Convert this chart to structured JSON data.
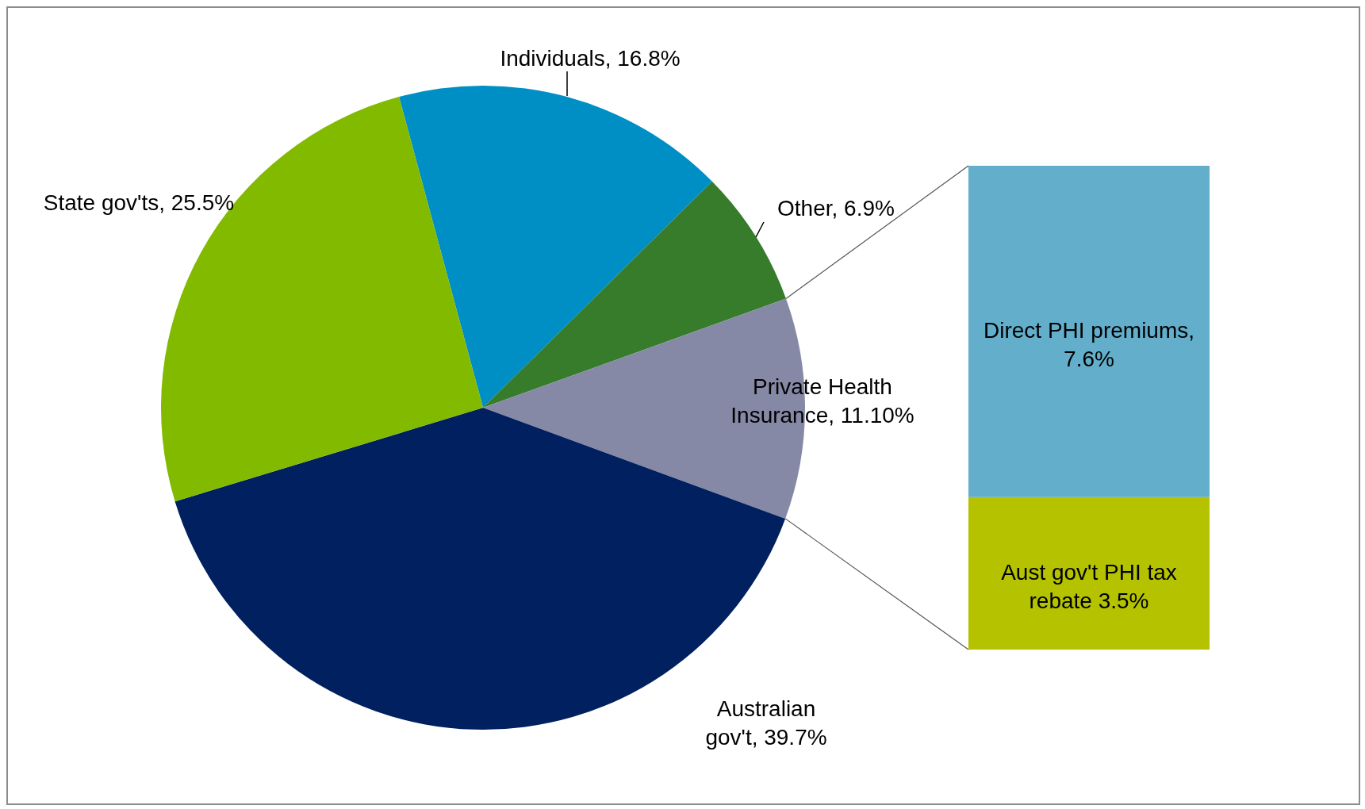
{
  "chart_data": [
    {
      "type": "pie",
      "categories": [
        "Individuals",
        "Other",
        "Private Health Insurance",
        "Australian gov't",
        "State gov'ts"
      ],
      "values": [
        16.8,
        6.9,
        11.1,
        39.7,
        25.5
      ],
      "value_labels": [
        "16.8%",
        "6.9%",
        "11.10%",
        "39.7%",
        "25.5%"
      ],
      "colors": [
        "#008fc5",
        "#367c2b",
        "#8589a6",
        "#00205f",
        "#82ba00"
      ]
    },
    {
      "type": "bar",
      "stacked": true,
      "categories": [
        null
      ],
      "series": [
        {
          "name": "Aust gov't PHI tax rebate",
          "color": "#b5c200",
          "values": [
            3.5
          ],
          "value_labels": [
            "3.5%"
          ]
        },
        {
          "name": "Direct PHI premiums,",
          "color": "#63aecb",
          "values": [
            7.6
          ],
          "value_labels": [
            "7.6%"
          ]
        }
      ]
    }
  ]
}
